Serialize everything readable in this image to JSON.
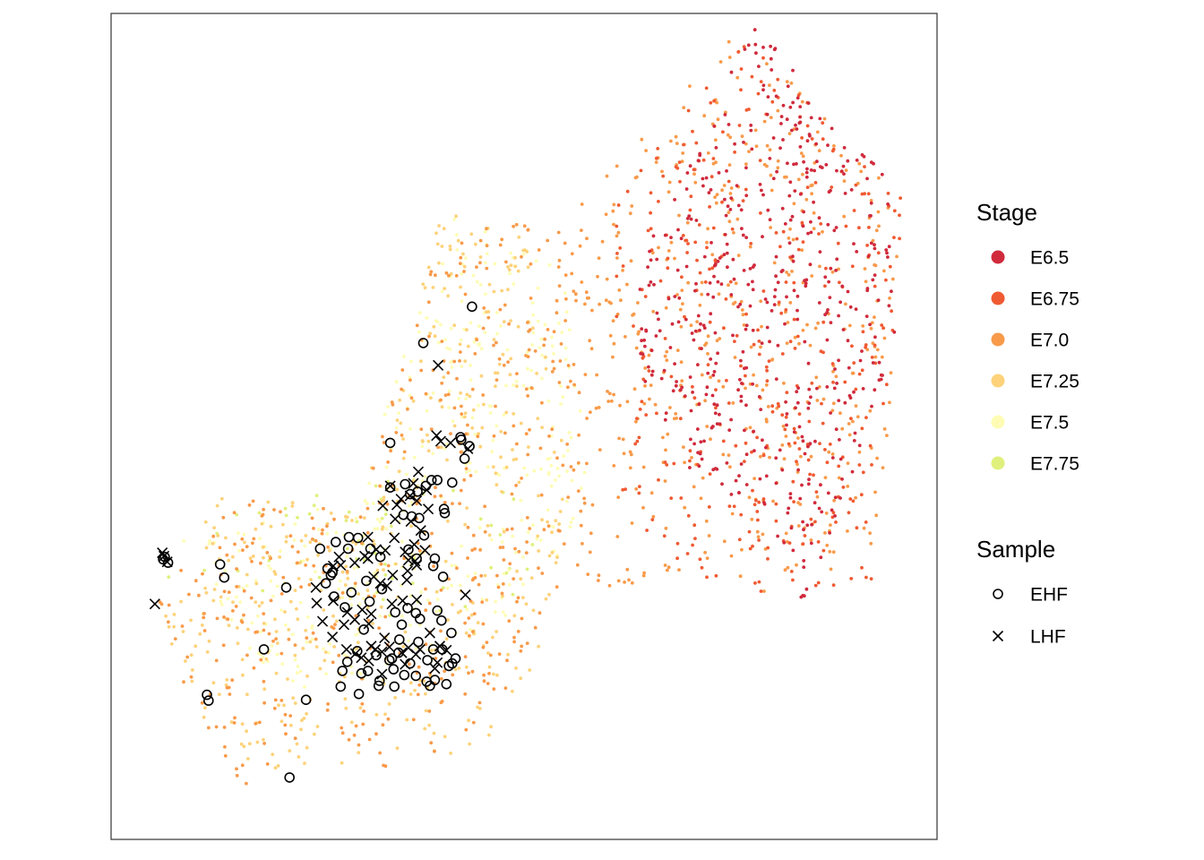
{
  "chart_data": {
    "type": "scatter",
    "title": "",
    "xlabel": "",
    "ylabel": "",
    "grid": false,
    "axes_visible": false,
    "xlim": [
      0,
      100
    ],
    "ylim": [
      0,
      100
    ],
    "legend_placement": "right",
    "legends": {
      "stage": {
        "title": "Stage",
        "entries": [
          {
            "label": "E6.5",
            "color": "#d02a3c"
          },
          {
            "label": "E6.75",
            "color": "#f05a32"
          },
          {
            "label": "E7.0",
            "color": "#f89a4a"
          },
          {
            "label": "E7.25",
            "color": "#fdd27a"
          },
          {
            "label": "E7.5",
            "color": "#fefcb4"
          },
          {
            "label": "E7.75",
            "color": "#e0f07c"
          }
        ]
      },
      "sample": {
        "title": "Sample",
        "entries": [
          {
            "label": "EHF",
            "shape": "circle"
          },
          {
            "label": "LHF",
            "shape": "cross"
          }
        ]
      }
    },
    "background_regions": [
      {
        "stage": "E6.5",
        "count": 480,
        "region": [
          [
            64,
            70
          ],
          [
            78,
            99
          ],
          [
            94,
            80
          ],
          [
            95,
            58
          ],
          [
            84,
            28
          ],
          [
            80,
            38
          ],
          [
            70,
            45
          ],
          [
            64,
            55
          ]
        ]
      },
      {
        "stage": "E6.75",
        "count": 350,
        "region": [
          [
            60,
            75
          ],
          [
            76,
            98
          ],
          [
            96,
            78
          ],
          [
            92,
            30
          ],
          [
            80,
            28
          ],
          [
            62,
            35
          ]
        ]
      },
      {
        "stage": "E7.0",
        "count": 950,
        "region": [
          [
            5,
            30
          ],
          [
            14,
            42
          ],
          [
            30,
            40
          ],
          [
            40,
            74
          ],
          [
            55,
            75
          ],
          [
            65,
            86
          ],
          [
            76,
            98
          ],
          [
            96,
            78
          ],
          [
            93,
            32
          ],
          [
            80,
            30
          ],
          [
            60,
            30
          ],
          [
            55,
            32
          ],
          [
            45,
            12
          ],
          [
            34,
            8
          ],
          [
            26,
            14
          ],
          [
            16,
            6
          ],
          [
            8,
            20
          ]
        ]
      },
      {
        "stage": "E7.25",
        "count": 420,
        "region": [
          [
            5,
            30
          ],
          [
            14,
            42
          ],
          [
            30,
            40
          ],
          [
            40,
            76
          ],
          [
            50,
            74
          ],
          [
            56,
            40
          ],
          [
            50,
            12
          ],
          [
            30,
            8
          ],
          [
            16,
            6
          ],
          [
            8,
            20
          ]
        ]
      },
      {
        "stage": "E7.5",
        "count": 380,
        "region": [
          [
            8,
            36
          ],
          [
            30,
            42
          ],
          [
            41,
            76
          ],
          [
            55,
            70
          ],
          [
            58,
            40
          ],
          [
            50,
            28
          ],
          [
            36,
            20
          ],
          [
            20,
            18
          ]
        ]
      },
      {
        "stage": "E7.75",
        "count": 60,
        "region": [
          [
            6,
            32
          ],
          [
            16,
            40
          ],
          [
            28,
            44
          ],
          [
            50,
            42
          ],
          [
            52,
            30
          ],
          [
            36,
            26
          ],
          [
            20,
            28
          ]
        ]
      }
    ],
    "ehf_points": [
      {
        "x": 43.7,
        "y": 64.5
      },
      {
        "x": 37.8,
        "y": 60.1
      },
      {
        "x": 33.8,
        "y": 48.0
      },
      {
        "x": 42.4,
        "y": 48.4
      },
      {
        "x": 43.4,
        "y": 47.6
      },
      {
        "x": 42.8,
        "y": 46.1
      },
      {
        "x": 38.8,
        "y": 43.5
      },
      {
        "x": 38.1,
        "y": 42.8
      },
      {
        "x": 35.6,
        "y": 43.0
      },
      {
        "x": 36.2,
        "y": 41.8
      },
      {
        "x": 37.3,
        "y": 38.9
      },
      {
        "x": 37.9,
        "y": 36.8
      },
      {
        "x": 41.3,
        "y": 43.2
      },
      {
        "x": 40.3,
        "y": 40.0
      },
      {
        "x": 37.0,
        "y": 34.0
      },
      {
        "x": 33.8,
        "y": 42.6
      },
      {
        "x": 32.6,
        "y": 34.2
      },
      {
        "x": 32.8,
        "y": 30.3
      },
      {
        "x": 31.3,
        "y": 28.8
      },
      {
        "x": 30.9,
        "y": 31.3
      },
      {
        "x": 28.8,
        "y": 36.6
      },
      {
        "x": 27.2,
        "y": 36.0
      },
      {
        "x": 25.3,
        "y": 35.2
      },
      {
        "x": 26.2,
        "y": 32.8
      },
      {
        "x": 26.6,
        "y": 32.0
      },
      {
        "x": 26.8,
        "y": 32.3
      },
      {
        "x": 26.0,
        "y": 31.0
      },
      {
        "x": 27.0,
        "y": 29.4
      },
      {
        "x": 28.3,
        "y": 28.1
      },
      {
        "x": 29.1,
        "y": 29.9
      },
      {
        "x": 30.6,
        "y": 25.4
      },
      {
        "x": 29.8,
        "y": 22.8
      },
      {
        "x": 30.3,
        "y": 20.1
      },
      {
        "x": 31.1,
        "y": 20.4
      },
      {
        "x": 32.1,
        "y": 22.3
      },
      {
        "x": 33.7,
        "y": 21.7
      },
      {
        "x": 34.0,
        "y": 21.9
      },
      {
        "x": 34.8,
        "y": 22.6
      },
      {
        "x": 34.9,
        "y": 24.2
      },
      {
        "x": 35.2,
        "y": 26.0
      },
      {
        "x": 34.4,
        "y": 27.5
      },
      {
        "x": 35.9,
        "y": 28.0
      },
      {
        "x": 36.9,
        "y": 27.4
      },
      {
        "x": 37.4,
        "y": 26.7
      },
      {
        "x": 37.2,
        "y": 23.9
      },
      {
        "x": 38.3,
        "y": 21.7
      },
      {
        "x": 38.2,
        "y": 19.1
      },
      {
        "x": 39.0,
        "y": 23.0
      },
      {
        "x": 39.5,
        "y": 27.7
      },
      {
        "x": 40.0,
        "y": 26.5
      },
      {
        "x": 40.1,
        "y": 23.0
      },
      {
        "x": 40.9,
        "y": 21.0
      },
      {
        "x": 41.3,
        "y": 21.3
      },
      {
        "x": 41.7,
        "y": 21.9
      },
      {
        "x": 40.6,
        "y": 18.8
      },
      {
        "x": 38.6,
        "y": 18.6
      },
      {
        "x": 36.9,
        "y": 19.8
      },
      {
        "x": 32.4,
        "y": 18.6
      },
      {
        "x": 30.0,
        "y": 17.6
      },
      {
        "x": 28.6,
        "y": 21.5
      },
      {
        "x": 27.8,
        "y": 18.5
      },
      {
        "x": 28.0,
        "y": 20.4
      },
      {
        "x": 32.5,
        "y": 19.2
      },
      {
        "x": 34.2,
        "y": 20.6
      },
      {
        "x": 36.2,
        "y": 21.3
      },
      {
        "x": 41.2,
        "y": 25.0
      },
      {
        "x": 40.2,
        "y": 31.8
      },
      {
        "x": 39.2,
        "y": 34.0
      },
      {
        "x": 39.0,
        "y": 33.1
      },
      {
        "x": 40.4,
        "y": 39.5
      },
      {
        "x": 28.7,
        "y": 35.2
      },
      {
        "x": 29.9,
        "y": 36.5
      },
      {
        "x": 31.4,
        "y": 35.2
      },
      {
        "x": 36.0,
        "y": 35.1
      },
      {
        "x": 35.4,
        "y": 39.3
      },
      {
        "x": 36.4,
        "y": 39.1
      },
      {
        "x": 39.5,
        "y": 43.5
      },
      {
        "x": 37.1,
        "y": 42.1
      },
      {
        "x": 42.3,
        "y": 48.7
      },
      {
        "x": 6.5,
        "y": 34.2
      },
      {
        "x": 6.3,
        "y": 33.9
      },
      {
        "x": 6.9,
        "y": 33.5
      },
      {
        "x": 13.2,
        "y": 33.3
      },
      {
        "x": 13.7,
        "y": 31.7
      },
      {
        "x": 21.2,
        "y": 30.5
      },
      {
        "x": 18.5,
        "y": 23.0
      },
      {
        "x": 11.6,
        "y": 17.5
      },
      {
        "x": 11.8,
        "y": 16.8
      },
      {
        "x": 23.6,
        "y": 16.9
      },
      {
        "x": 21.6,
        "y": 7.5
      },
      {
        "x": 39.2,
        "y": 19.3
      },
      {
        "x": 34.3,
        "y": 18.5
      },
      {
        "x": 35.5,
        "y": 19.9
      }
    ],
    "lhf_points": [
      {
        "x": 39.6,
        "y": 57.4
      },
      {
        "x": 39.9,
        "y": 48.2
      },
      {
        "x": 43.2,
        "y": 47.3
      },
      {
        "x": 37.2,
        "y": 44.5
      },
      {
        "x": 36.6,
        "y": 43.1
      },
      {
        "x": 38.2,
        "y": 42.3
      },
      {
        "x": 36.2,
        "y": 41.6
      },
      {
        "x": 35.1,
        "y": 41.2
      },
      {
        "x": 37.0,
        "y": 41.0
      },
      {
        "x": 34.6,
        "y": 40.5
      },
      {
        "x": 38.4,
        "y": 40.0
      },
      {
        "x": 34.4,
        "y": 38.8
      },
      {
        "x": 36.3,
        "y": 38.5
      },
      {
        "x": 37.5,
        "y": 37.4
      },
      {
        "x": 34.3,
        "y": 36.5
      },
      {
        "x": 35.6,
        "y": 34.8
      },
      {
        "x": 38.0,
        "y": 35.0
      },
      {
        "x": 32.1,
        "y": 35.1
      },
      {
        "x": 30.7,
        "y": 34.3
      },
      {
        "x": 31.1,
        "y": 34.0
      },
      {
        "x": 29.5,
        "y": 33.5
      },
      {
        "x": 27.6,
        "y": 34.2
      },
      {
        "x": 27.8,
        "y": 33.2
      },
      {
        "x": 26.9,
        "y": 33.1
      },
      {
        "x": 31.8,
        "y": 31.8
      },
      {
        "x": 32.6,
        "y": 31.0
      },
      {
        "x": 33.4,
        "y": 30.7
      },
      {
        "x": 34.0,
        "y": 28.5
      },
      {
        "x": 35.3,
        "y": 28.9
      },
      {
        "x": 37.0,
        "y": 29.0
      },
      {
        "x": 31.5,
        "y": 27.3
      },
      {
        "x": 31.2,
        "y": 26.1
      },
      {
        "x": 29.5,
        "y": 26.6
      },
      {
        "x": 28.2,
        "y": 26.0
      },
      {
        "x": 26.9,
        "y": 28.9
      },
      {
        "x": 24.8,
        "y": 30.5
      },
      {
        "x": 24.9,
        "y": 28.6
      },
      {
        "x": 25.6,
        "y": 26.4
      },
      {
        "x": 26.8,
        "y": 24.5
      },
      {
        "x": 28.5,
        "y": 23.0
      },
      {
        "x": 29.6,
        "y": 22.5
      },
      {
        "x": 30.3,
        "y": 22.0
      },
      {
        "x": 31.2,
        "y": 21.6
      },
      {
        "x": 32.8,
        "y": 20.0
      },
      {
        "x": 33.1,
        "y": 24.4
      },
      {
        "x": 33.7,
        "y": 23.3
      },
      {
        "x": 35.2,
        "y": 22.6
      },
      {
        "x": 36.0,
        "y": 23.2
      },
      {
        "x": 37.4,
        "y": 23.0
      },
      {
        "x": 36.9,
        "y": 22.4
      },
      {
        "x": 35.6,
        "y": 21.2
      },
      {
        "x": 32.8,
        "y": 22.7
      },
      {
        "x": 32.0,
        "y": 23.0
      },
      {
        "x": 31.5,
        "y": 23.4
      },
      {
        "x": 38.6,
        "y": 25.0
      },
      {
        "x": 39.8,
        "y": 23.4
      },
      {
        "x": 40.6,
        "y": 22.9
      },
      {
        "x": 39.5,
        "y": 21.4
      },
      {
        "x": 39.2,
        "y": 20.7
      },
      {
        "x": 42.9,
        "y": 29.6
      },
      {
        "x": 35.8,
        "y": 31.4
      },
      {
        "x": 37.0,
        "y": 33.2
      },
      {
        "x": 36.0,
        "y": 33.8
      },
      {
        "x": 33.2,
        "y": 35.0
      },
      {
        "x": 41.1,
        "y": 48.0
      },
      {
        "x": 39.4,
        "y": 48.9
      },
      {
        "x": 28.6,
        "y": 27.5
      },
      {
        "x": 30.4,
        "y": 27.8
      },
      {
        "x": 34.1,
        "y": 32.0
      },
      {
        "x": 35.9,
        "y": 32.5
      },
      {
        "x": 36.8,
        "y": 33.7
      },
      {
        "x": 6.2,
        "y": 34.7
      },
      {
        "x": 6.4,
        "y": 34.3
      },
      {
        "x": 6.8,
        "y": 33.6
      },
      {
        "x": 5.3,
        "y": 28.5
      },
      {
        "x": 33.8,
        "y": 42.8
      },
      {
        "x": 36.7,
        "y": 35.7
      },
      {
        "x": 31.1,
        "y": 36.6
      },
      {
        "x": 32.9,
        "y": 40.4
      }
    ]
  }
}
